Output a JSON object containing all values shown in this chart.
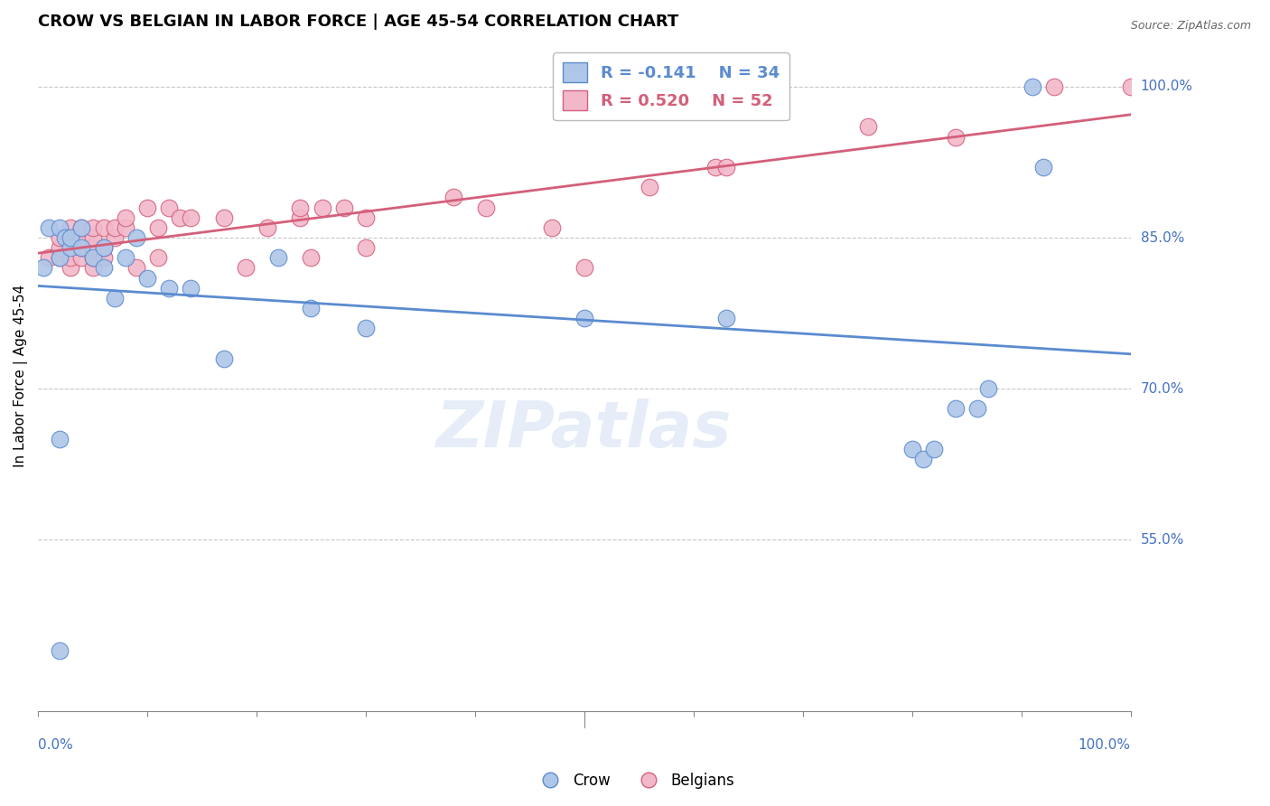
{
  "title": "CROW VS BELGIAN IN LABOR FORCE | AGE 45-54 CORRELATION CHART",
  "source": "Source: ZipAtlas.com",
  "ylabel": "In Labor Force | Age 45-54",
  "ytick_labels": [
    "55.0%",
    "70.0%",
    "85.0%",
    "100.0%"
  ],
  "ytick_values": [
    0.55,
    0.7,
    0.85,
    1.0
  ],
  "xlim": [
    0.0,
    1.0
  ],
  "ylim": [
    0.38,
    1.045
  ],
  "legend_r_crow": "R = -0.141",
  "legend_n_crow": "N = 34",
  "legend_r_belgian": "R = 0.520",
  "legend_n_belgian": "N = 52",
  "crow_color": "#aec6e8",
  "crow_line_color": "#5b8bd0",
  "belgian_color": "#f2b8ca",
  "belgian_line_color": "#d45f7a",
  "background_color": "#ffffff",
  "grid_color": "#c8c8c8",
  "crow_x": [
    0.005,
    0.01,
    0.02,
    0.02,
    0.025,
    0.03,
    0.03,
    0.04,
    0.04,
    0.05,
    0.06,
    0.06,
    0.07,
    0.08,
    0.09,
    0.1,
    0.12,
    0.14,
    0.17,
    0.22,
    0.25,
    0.3,
    0.5,
    0.63,
    0.8,
    0.81,
    0.82,
    0.84,
    0.86,
    0.87,
    0.91,
    0.92,
    0.02,
    0.02
  ],
  "crow_y": [
    0.82,
    0.86,
    0.83,
    0.86,
    0.85,
    0.84,
    0.85,
    0.84,
    0.86,
    0.83,
    0.84,
    0.82,
    0.79,
    0.83,
    0.85,
    0.81,
    0.8,
    0.8,
    0.73,
    0.83,
    0.78,
    0.76,
    0.77,
    0.77,
    0.64,
    0.63,
    0.64,
    0.68,
    0.68,
    0.7,
    1.0,
    0.92,
    0.65,
    0.44
  ],
  "belgian_x": [
    0.01,
    0.02,
    0.02,
    0.02,
    0.03,
    0.03,
    0.03,
    0.03,
    0.04,
    0.04,
    0.04,
    0.04,
    0.05,
    0.05,
    0.05,
    0.05,
    0.05,
    0.06,
    0.06,
    0.06,
    0.07,
    0.07,
    0.08,
    0.08,
    0.09,
    0.1,
    0.11,
    0.11,
    0.12,
    0.13,
    0.14,
    0.17,
    0.19,
    0.21,
    0.24,
    0.24,
    0.25,
    0.26,
    0.28,
    0.3,
    0.3,
    0.38,
    0.41,
    0.47,
    0.5,
    0.56,
    0.62,
    0.63,
    0.76,
    0.84,
    0.93,
    1.0
  ],
  "belgian_y": [
    0.83,
    0.83,
    0.84,
    0.85,
    0.82,
    0.83,
    0.85,
    0.86,
    0.83,
    0.84,
    0.85,
    0.86,
    0.82,
    0.83,
    0.84,
    0.85,
    0.86,
    0.83,
    0.84,
    0.86,
    0.85,
    0.86,
    0.86,
    0.87,
    0.82,
    0.88,
    0.83,
    0.86,
    0.88,
    0.87,
    0.87,
    0.87,
    0.82,
    0.86,
    0.87,
    0.88,
    0.83,
    0.88,
    0.88,
    0.84,
    0.87,
    0.89,
    0.88,
    0.86,
    0.82,
    0.9,
    0.92,
    0.92,
    0.96,
    0.95,
    1.0,
    1.0
  ]
}
